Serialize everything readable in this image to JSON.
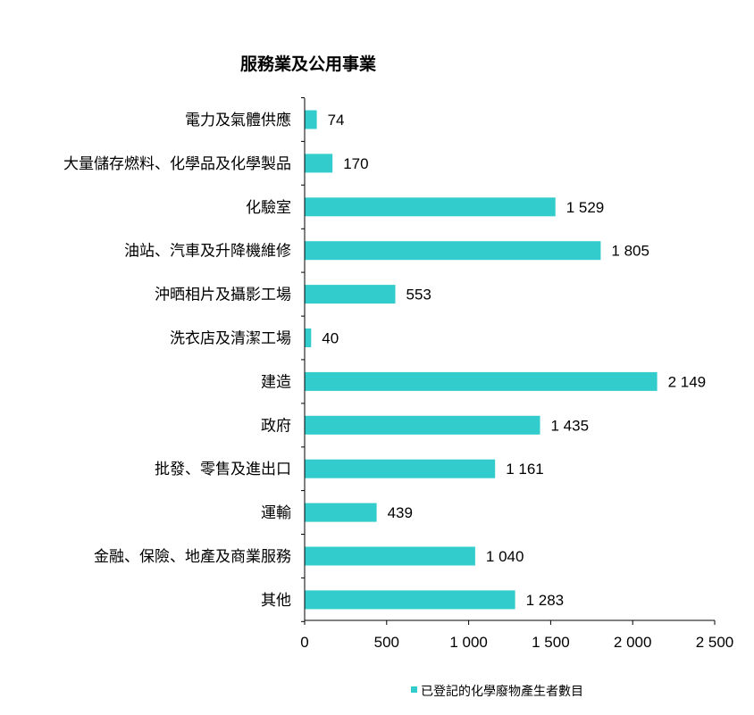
{
  "chart_data": {
    "type": "bar",
    "orientation": "horizontal",
    "title": "服務業及公用事業",
    "categories": [
      "電力及氣體供應",
      "大量儲存燃料、化學品及化學製品",
      "化驗室",
      "油站、汽車及升降機維修",
      "沖晒相片及攝影工場",
      "洗衣店及清潔工場",
      "建造",
      "政府",
      "批發、零售及進出口",
      "運輸",
      "金融、保險、地產及商業服務",
      "其他"
    ],
    "values": [
      74,
      170,
      1529,
      1805,
      553,
      40,
      2149,
      1435,
      1161,
      439,
      1040,
      1283
    ],
    "value_labels": [
      "74",
      "170",
      "1 529",
      "1 805",
      "553",
      "40",
      "2 149",
      "1 435",
      "1 161",
      "439",
      "1 040",
      "1 283"
    ],
    "xlim": [
      0,
      2500
    ],
    "x_ticks": [
      0,
      500,
      1000,
      1500,
      2000,
      2500
    ],
    "x_tick_labels": [
      "0",
      "500",
      "1 000",
      "1 500",
      "2 000",
      "2 500"
    ],
    "grid": false,
    "legend_position": "bottom",
    "series": [
      {
        "name": "已登記的化學廢物產生者數目",
        "color": "#33CCCC"
      }
    ]
  }
}
